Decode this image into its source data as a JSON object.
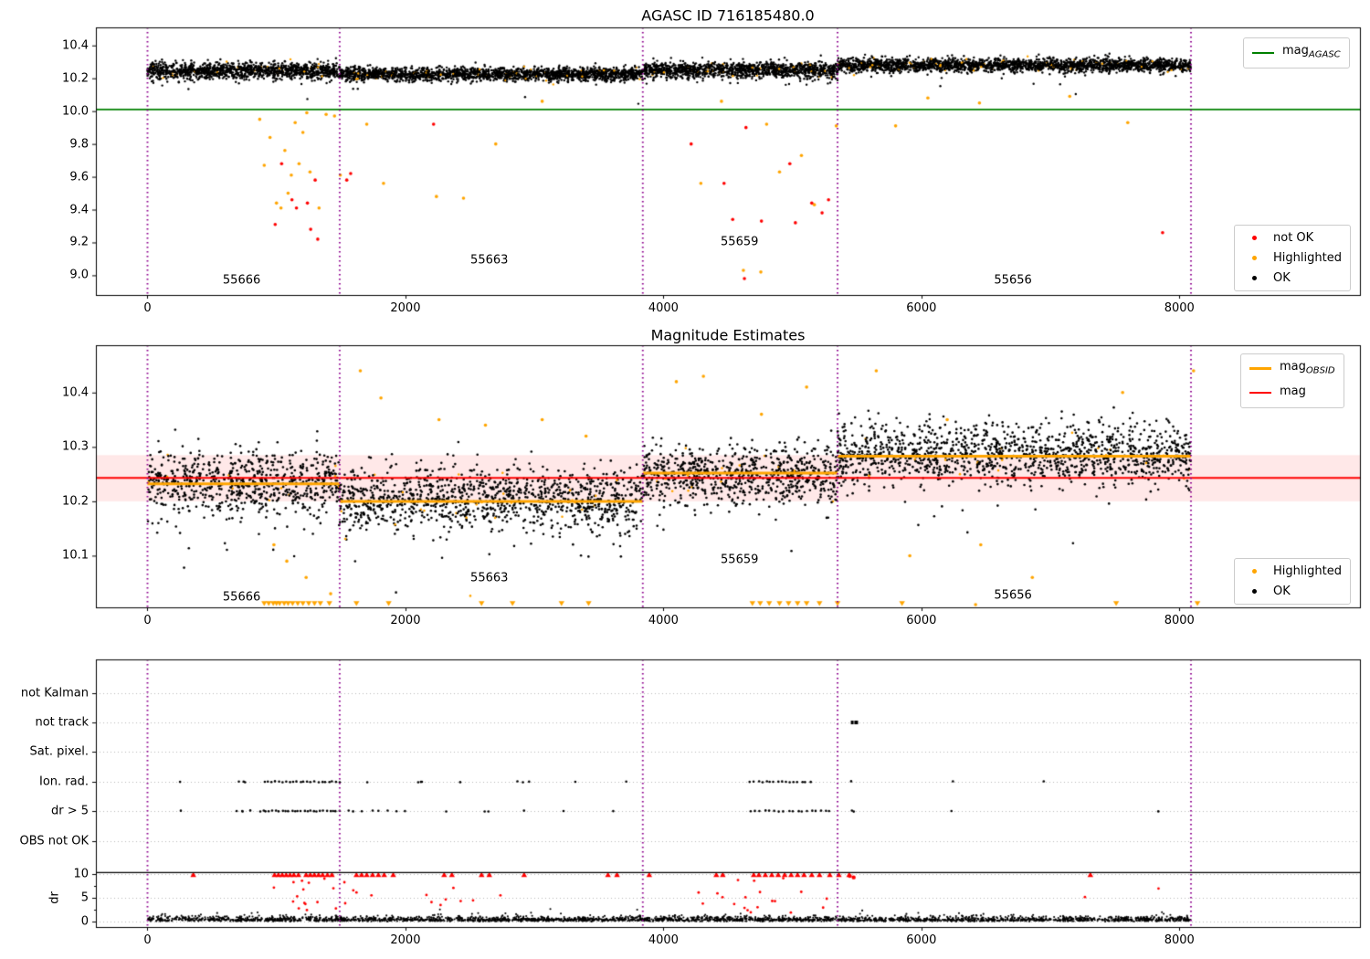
{
  "figure": {
    "background": "#ffffff"
  },
  "colors": {
    "ok": "#000000",
    "highlighted": "#ffa500",
    "not_ok": "#ff0000",
    "mag_agasc_line": "#008000",
    "mag_line": "#ff0000",
    "mag_obsid_line": "#ffa500",
    "obsid_boundary": "#8e008e",
    "band_fill": "rgba(255,0,0,0.09)",
    "grid": "#b8b8b8",
    "frame": "#000000",
    "threshold_line": "#000000"
  },
  "chart_data": [
    {
      "panel": "magnitudes_overview",
      "type": "scatter",
      "title": "AGASC ID 716185480.0",
      "xlim": [
        -400,
        9400
      ],
      "ylim": [
        8.88,
        10.51
      ],
      "xticks": [
        0,
        2000,
        4000,
        6000,
        8000
      ],
      "yticks": [
        10.4,
        10.2,
        10.0,
        9.8,
        9.6,
        9.4,
        9.2,
        9.0
      ],
      "mag_agasc_line_value": 10.01,
      "obsid_boundaries": [
        0,
        1490,
        3840,
        5350,
        8090
      ],
      "obsid_labels": [
        {
          "text": "55666",
          "x": 730,
          "y": 8.97
        },
        {
          "text": "55663",
          "x": 2650,
          "y": 9.09
        },
        {
          "text": "55659",
          "x": 4590,
          "y": 9.2
        },
        {
          "text": "55656",
          "x": 6710,
          "y": 8.97
        }
      ],
      "bands": [
        {
          "obsid": "55666",
          "x0": 0,
          "x1": 1490,
          "mean": 10.245,
          "sd": 0.025,
          "n": 1267
        },
        {
          "obsid": "55663",
          "x0": 1490,
          "x1": 3840,
          "mean": 10.225,
          "sd": 0.02,
          "n": 1998
        },
        {
          "obsid": "55659",
          "x0": 3840,
          "x1": 5350,
          "mean": 10.25,
          "sd": 0.025,
          "n": 1284
        },
        {
          "obsid": "55656",
          "x0": 5350,
          "x1": 8090,
          "mean": 10.28,
          "sd": 0.02,
          "n": 2329
        }
      ],
      "highlight_fraction": 0.025,
      "points_not_ok": [
        [
          990,
          9.31
        ],
        [
          1040,
          9.68
        ],
        [
          1120,
          9.46
        ],
        [
          1155,
          9.41
        ],
        [
          1240,
          9.44
        ],
        [
          1265,
          9.28
        ],
        [
          1300,
          9.58
        ],
        [
          1320,
          9.22
        ],
        [
          1545,
          9.58
        ],
        [
          1575,
          9.62
        ],
        [
          2218,
          9.92
        ],
        [
          4215,
          9.8
        ],
        [
          4470,
          9.56
        ],
        [
          4537,
          9.34
        ],
        [
          4628,
          8.98
        ],
        [
          4640,
          9.9
        ],
        [
          4760,
          9.33
        ],
        [
          4980,
          9.68
        ],
        [
          5023,
          9.32
        ],
        [
          5150,
          9.44
        ],
        [
          5230,
          9.38
        ],
        [
          5280,
          9.46
        ],
        [
          7870,
          9.26
        ]
      ],
      "points_highlighted": [
        [
          870,
          9.95
        ],
        [
          905,
          9.67
        ],
        [
          950,
          9.84
        ],
        [
          1000,
          9.44
        ],
        [
          1035,
          9.41
        ],
        [
          1065,
          9.76
        ],
        [
          1090,
          9.5
        ],
        [
          1115,
          9.61
        ],
        [
          1145,
          9.93
        ],
        [
          1175,
          9.68
        ],
        [
          1205,
          9.87
        ],
        [
          1235,
          9.99
        ],
        [
          1260,
          9.63
        ],
        [
          1330,
          9.41
        ],
        [
          1385,
          9.98
        ],
        [
          1450,
          9.97
        ],
        [
          1495,
          9.61
        ],
        [
          1700,
          9.92
        ],
        [
          1830,
          9.56
        ],
        [
          2240,
          9.48
        ],
        [
          2450,
          9.47
        ],
        [
          2700,
          9.8
        ],
        [
          3060,
          10.06
        ],
        [
          4290,
          9.56
        ],
        [
          4450,
          10.06
        ],
        [
          4620,
          9.03
        ],
        [
          4755,
          9.02
        ],
        [
          4800,
          9.92
        ],
        [
          4900,
          9.63
        ],
        [
          5070,
          9.73
        ],
        [
          5170,
          9.43
        ],
        [
          5340,
          9.91
        ],
        [
          5800,
          9.91
        ],
        [
          6050,
          10.08
        ],
        [
          6450,
          10.05
        ],
        [
          7150,
          10.09
        ],
        [
          7600,
          9.93
        ]
      ],
      "legend_line": {
        "main": "mag",
        "sub": "AGASC"
      },
      "legend_points": [
        {
          "label": "not OK",
          "key": "not_ok"
        },
        {
          "label": "Highlighted",
          "key": "highlighted"
        },
        {
          "label": "OK",
          "key": "ok"
        }
      ]
    },
    {
      "panel": "magnitude_estimates",
      "type": "scatter",
      "title": "Magnitude Estimates",
      "xlim": [
        -400,
        9400
      ],
      "ylim": [
        10.005,
        10.487
      ],
      "xticks": [
        0,
        2000,
        4000,
        6000,
        8000
      ],
      "yticks": [
        10.4,
        10.3,
        10.2,
        10.1
      ],
      "mag_line_value": 10.243,
      "mag_band": [
        10.2,
        10.285
      ],
      "mag_obsid_segments": [
        {
          "obsid": "55666",
          "x0": 0,
          "x1": 1490,
          "value": 10.232
        },
        {
          "obsid": "55663",
          "x0": 1490,
          "x1": 3840,
          "value": 10.2
        },
        {
          "obsid": "55659",
          "x0": 3840,
          "x1": 5350,
          "value": 10.252
        },
        {
          "obsid": "55656",
          "x0": 5350,
          "x1": 8090,
          "value": 10.283
        }
      ],
      "obsid_boundaries": [
        0,
        1490,
        3840,
        5350,
        8090
      ],
      "obsid_labels": [
        {
          "text": "55666",
          "x": 730,
          "y": 10.023
        },
        {
          "text": "55663",
          "x": 2650,
          "y": 10.058
        },
        {
          "text": "55659",
          "x": 4590,
          "y": 10.093
        },
        {
          "text": "55656",
          "x": 6710,
          "y": 10.026
        }
      ],
      "bands": [
        {
          "obsid": "55666",
          "x0": 0,
          "x1": 1490,
          "mean": 10.235,
          "sd": 0.03,
          "n": 745
        },
        {
          "obsid": "55663",
          "x0": 1490,
          "x1": 3840,
          "mean": 10.205,
          "sd": 0.03,
          "n": 1175
        },
        {
          "obsid": "55659",
          "x0": 3840,
          "x1": 5350,
          "mean": 10.248,
          "sd": 0.027,
          "n": 755
        },
        {
          "obsid": "55656",
          "x0": 5350,
          "x1": 8090,
          "mean": 10.287,
          "sd": 0.027,
          "n": 1370
        }
      ],
      "highlight_fraction": 0.02,
      "points_highlighted": [
        [
          980,
          10.12
        ],
        [
          1080,
          10.09
        ],
        [
          1230,
          10.06
        ],
        [
          1420,
          10.03
        ],
        [
          1650,
          10.44
        ],
        [
          1810,
          10.39
        ],
        [
          2260,
          10.35
        ],
        [
          2620,
          10.34
        ],
        [
          3060,
          10.35
        ],
        [
          3400,
          10.32
        ],
        [
          4100,
          10.42
        ],
        [
          4310,
          10.43
        ],
        [
          4760,
          10.36
        ],
        [
          5110,
          10.41
        ],
        [
          5650,
          10.44
        ],
        [
          5910,
          10.1
        ],
        [
          6200,
          10.35
        ],
        [
          6420,
          10.01
        ],
        [
          6460,
          10.12
        ],
        [
          6860,
          10.06
        ],
        [
          7560,
          10.4
        ],
        [
          8110,
          10.44
        ]
      ],
      "clipped_low_x": [
        905,
        940,
        975,
        1000,
        1025,
        1060,
        1090,
        1125,
        1165,
        1205,
        1250,
        1295,
        1340,
        1410,
        1620,
        1870,
        2590,
        2830,
        3210,
        3420,
        4690,
        4750,
        4820,
        4900,
        4970,
        5040,
        5110,
        5210,
        5350,
        5850,
        7510,
        8140
      ],
      "legend_lines": [
        {
          "main": "mag",
          "sub": "OBSID",
          "key": "mag_obsid_line"
        },
        {
          "main": "mag",
          "sub": "",
          "key": "mag_line"
        }
      ],
      "legend_points": [
        {
          "label": "Highlighted",
          "key": "highlighted"
        },
        {
          "label": "OK",
          "key": "ok"
        }
      ]
    },
    {
      "panel": "flags_and_dr",
      "type": "scatter",
      "xlim": [
        -400,
        9400
      ],
      "xticks": [
        0,
        2000,
        4000,
        6000,
        8000
      ],
      "categories": [
        "not Kalman",
        "not track",
        "Sat. pixel.",
        "Ion. rad.",
        "dr > 5",
        "OBS not OK"
      ],
      "dr_axis": {
        "label": "dr",
        "ticks": [
          0,
          5,
          10
        ],
        "limit_line": 10.3
      },
      "obsid_boundaries": [
        0,
        1490,
        3840,
        5350,
        8090
      ],
      "flag_clusters": {
        "not track": [
          [
            5440,
            5500,
            4
          ]
        ],
        "Ion. rad.": [
          [
            250,
            260,
            1
          ],
          [
            690,
            780,
            3
          ],
          [
            900,
            1500,
            22
          ],
          [
            1700,
            1720,
            1
          ],
          [
            2050,
            2160,
            3
          ],
          [
            2410,
            2430,
            1
          ],
          [
            2860,
            2960,
            3
          ],
          [
            3310,
            3330,
            1
          ],
          [
            3710,
            3730,
            1
          ],
          [
            4660,
            5150,
            16
          ],
          [
            5450,
            5470,
            1
          ],
          [
            6230,
            6250,
            1
          ],
          [
            6930,
            6950,
            1
          ]
        ],
        "dr > 5": [
          [
            250,
            260,
            1
          ],
          [
            690,
            800,
            4
          ],
          [
            860,
            1500,
            26
          ],
          [
            1520,
            2010,
            8
          ],
          [
            2310,
            2330,
            1
          ],
          [
            2610,
            2650,
            2
          ],
          [
            2910,
            2930,
            1
          ],
          [
            3210,
            3230,
            1
          ],
          [
            3610,
            3630,
            1
          ],
          [
            4660,
            5310,
            18
          ],
          [
            5440,
            5490,
            2
          ],
          [
            6230,
            6250,
            1
          ],
          [
            7820,
            7840,
            1
          ]
        ]
      },
      "dr_trace": {
        "x0": 0,
        "x1": 8090,
        "n": 2800,
        "base": 0.45
      },
      "dr_red_clusters": [
        [
          950,
          1750,
          20
        ],
        [
          1900,
          3100,
          8
        ],
        [
          4200,
          5400,
          20
        ],
        [
          7250,
          7270,
          1
        ],
        [
          7820,
          7840,
          1
        ]
      ],
      "dr_red_points": [
        [
          5445,
          9.6
        ],
        [
          5475,
          9.3
        ]
      ],
      "dr_clipped_x": [
        355,
        985,
        1015,
        1045,
        1075,
        1105,
        1135,
        1170,
        1230,
        1262,
        1294,
        1326,
        1358,
        1395,
        1430,
        1620,
        1660,
        1700,
        1745,
        1790,
        1835,
        1905,
        2300,
        2360,
        2590,
        2650,
        2920,
        3570,
        3640,
        3890,
        4410,
        4460,
        4700,
        4740,
        4790,
        4840,
        4890,
        4940,
        4990,
        5040,
        5090,
        5150,
        5210,
        5290,
        5360,
        5440,
        7310
      ]
    }
  ]
}
